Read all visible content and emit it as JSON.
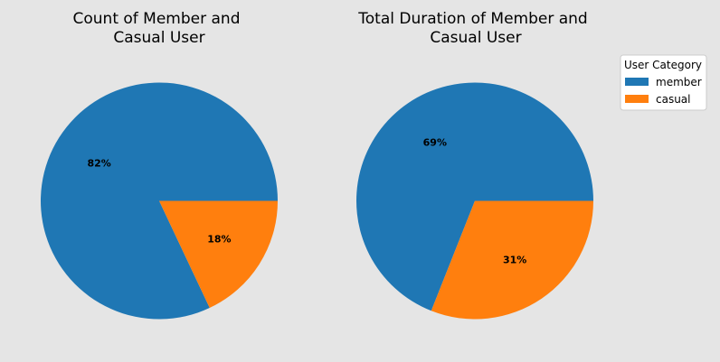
{
  "colors": {
    "background": "#e5e5e5",
    "member": "#1f77b4",
    "casual": "#ff7f0e"
  },
  "legend": {
    "title": "User Category",
    "entries": [
      {
        "label": "member",
        "color": "#1f77b4"
      },
      {
        "label": "casual",
        "color": "#ff7f0e"
      }
    ],
    "placement": "top-right"
  },
  "chart_data": [
    {
      "type": "pie",
      "title_lines": [
        "Count of Member and",
        "Casual User"
      ],
      "categories": [
        "member",
        "casual"
      ],
      "values": [
        82,
        18
      ],
      "labels": [
        "82%",
        "18%"
      ],
      "colors": [
        "#1f77b4",
        "#ff7f0e"
      ],
      "start_angle_deg": 0,
      "direction": "counterclockwise"
    },
    {
      "type": "pie",
      "title_lines": [
        "Total Duration of Member and",
        "Casual User"
      ],
      "categories": [
        "member",
        "casual"
      ],
      "values": [
        69,
        31
      ],
      "labels": [
        "69%",
        "31%"
      ],
      "colors": [
        "#1f77b4",
        "#ff7f0e"
      ],
      "start_angle_deg": 0,
      "direction": "counterclockwise"
    }
  ]
}
